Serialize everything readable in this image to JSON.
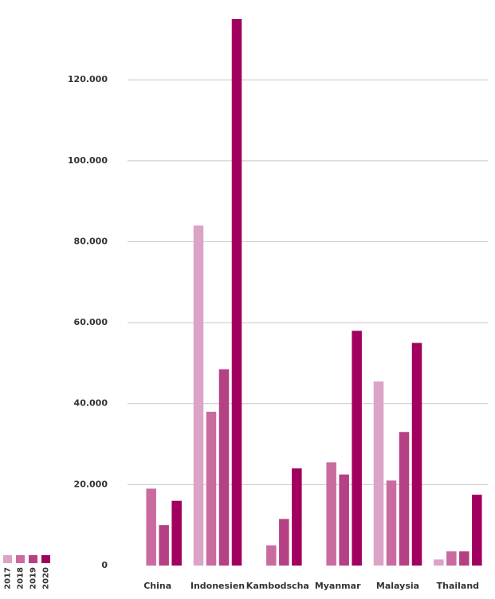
{
  "chart_data": {
    "type": "bar",
    "categories": [
      "China",
      "Indonesien",
      "Kambodscha",
      "Myanmar",
      "Malaysia",
      "Thailand"
    ],
    "series": [
      {
        "name": "2017",
        "color": "#dba3c6",
        "values": [
          null,
          84000,
          null,
          null,
          45500,
          1500
        ]
      },
      {
        "name": "2018",
        "color": "#c96b9f",
        "values": [
          19000,
          38000,
          5000,
          25500,
          21000,
          3500
        ]
      },
      {
        "name": "2019",
        "color": "#b54083",
        "values": [
          10000,
          48500,
          11500,
          22500,
          33000,
          3500
        ]
      },
      {
        "name": "2020",
        "color": "#a1005f",
        "values": [
          16000,
          135000,
          24000,
          58000,
          55000,
          17500
        ]
      }
    ],
    "ylim": [
      0,
      135000
    ],
    "yticks": [
      0,
      {
        "value": 20000,
        "label": "20.000"
      },
      {
        "value": 40000,
        "label": "40.000"
      },
      {
        "value": 60000,
        "label": "60.000"
      },
      {
        "value": 80000,
        "label": "80.000"
      },
      {
        "value": 100000,
        "label": "100.000"
      },
      {
        "value": 120000,
        "label": "120.000"
      }
    ],
    "grid": true
  }
}
